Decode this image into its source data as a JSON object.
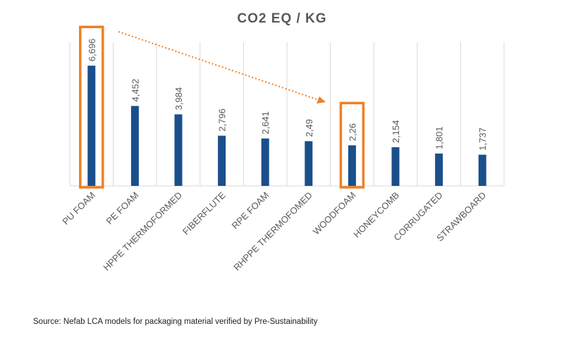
{
  "chart_data": {
    "type": "bar",
    "title": "CO2 EQ / KG",
    "xlabel": "",
    "ylabel": "",
    "ylim": [
      0,
      7.5
    ],
    "grid": "vertical",
    "categories": [
      "PU FOAM",
      "PE FOAM",
      "HPPE THERMOFORMED",
      "FIBERFLUTE",
      "RPE FOAM",
      "RHPPE THERMOFOMED",
      "WOODFOAM",
      "HONEYCOMB",
      "CORRUGATED",
      "STRAWBOARD"
    ],
    "values": [
      6.696,
      4.452,
      3.984,
      2.796,
      2.641,
      2.49,
      2.26,
      2.154,
      1.801,
      1.737
    ],
    "value_labels": [
      "6,696",
      "4,452",
      "3,984",
      "2,796",
      "2,641",
      "2,49",
      "2,26",
      "2,154",
      "1,801",
      "1,737"
    ],
    "highlighted": [
      "PU FOAM",
      "WOODFOAM"
    ],
    "annotation": "dotted arrow from PU FOAM to WOODFOAM"
  },
  "source": "Source: Nefab LCA models for packaging material verified by Pre-Sustainability",
  "colors": {
    "bar": "#1a4f8b",
    "highlight": "#f07f23",
    "grid": "#d9d9d9",
    "label": "#595959"
  }
}
